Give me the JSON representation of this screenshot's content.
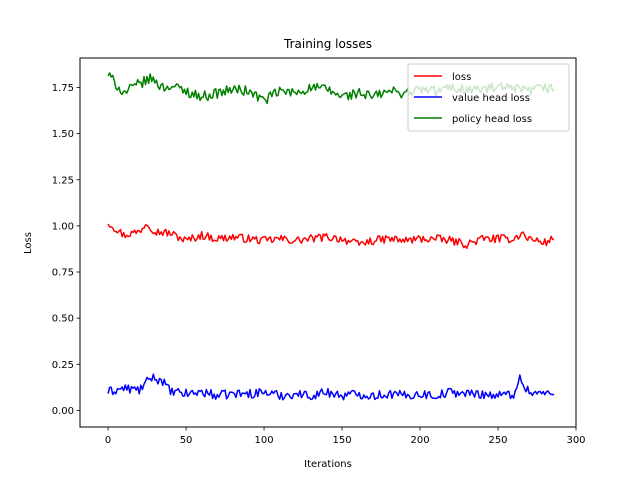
{
  "chart_data": {
    "type": "line",
    "title": "Training losses",
    "xlabel": "Iterations",
    "ylabel": "Loss",
    "xlim": [
      -18,
      300
    ],
    "ylim": [
      -0.09,
      1.91
    ],
    "xticks": [
      0,
      50,
      100,
      150,
      200,
      250,
      300
    ],
    "yticks": [
      0.0,
      0.25,
      0.5,
      0.75,
      1.0,
      1.25,
      1.5,
      1.75
    ],
    "ytick_labels": [
      "0.00",
      "0.25",
      "0.50",
      "0.75",
      "1.00",
      "1.25",
      "1.50",
      "1.75"
    ],
    "grid": false,
    "legend_position": "upper-right",
    "n_points": 287,
    "series": [
      {
        "name": "loss",
        "color": "#ff0000",
        "x": [
          0,
          10,
          20,
          25,
          30,
          40,
          50,
          60,
          70,
          80,
          90,
          100,
          110,
          120,
          130,
          140,
          150,
          160,
          170,
          180,
          190,
          200,
          210,
          220,
          230,
          240,
          250,
          260,
          265,
          270,
          280,
          286
        ],
        "values": [
          1.02,
          0.95,
          0.97,
          1.02,
          0.97,
          0.96,
          0.92,
          0.95,
          0.93,
          0.94,
          0.93,
          0.92,
          0.93,
          0.92,
          0.93,
          0.94,
          0.93,
          0.9,
          0.92,
          0.93,
          0.92,
          0.93,
          0.93,
          0.92,
          0.9,
          0.93,
          0.93,
          0.93,
          0.96,
          0.93,
          0.91,
          0.93
        ]
      },
      {
        "name": "value head loss",
        "color": "#0000ff",
        "x": [
          0,
          10,
          20,
          28,
          35,
          40,
          50,
          60,
          70,
          80,
          90,
          100,
          110,
          120,
          130,
          140,
          150,
          160,
          170,
          180,
          190,
          200,
          210,
          220,
          230,
          240,
          250,
          260,
          264,
          270,
          280,
          286
        ],
        "values": [
          0.1,
          0.12,
          0.11,
          0.18,
          0.16,
          0.1,
          0.09,
          0.1,
          0.08,
          0.09,
          0.09,
          0.1,
          0.08,
          0.09,
          0.08,
          0.1,
          0.08,
          0.09,
          0.08,
          0.09,
          0.08,
          0.09,
          0.08,
          0.1,
          0.09,
          0.09,
          0.08,
          0.09,
          0.17,
          0.1,
          0.09,
          0.09
        ]
      },
      {
        "name": "policy head loss",
        "color": "#008000",
        "x": [
          0,
          10,
          20,
          28,
          35,
          40,
          50,
          60,
          70,
          80,
          90,
          100,
          110,
          120,
          130,
          140,
          150,
          160,
          170,
          180,
          190,
          200,
          210,
          220,
          230,
          240,
          250,
          260,
          270,
          280,
          286
        ],
        "values": [
          1.82,
          1.72,
          1.77,
          1.8,
          1.75,
          1.76,
          1.73,
          1.7,
          1.72,
          1.74,
          1.73,
          1.68,
          1.73,
          1.72,
          1.75,
          1.74,
          1.7,
          1.72,
          1.7,
          1.73,
          1.72,
          1.74,
          1.73,
          1.75,
          1.74,
          1.74,
          1.75,
          1.74,
          1.73,
          1.75,
          1.74
        ]
      }
    ]
  }
}
